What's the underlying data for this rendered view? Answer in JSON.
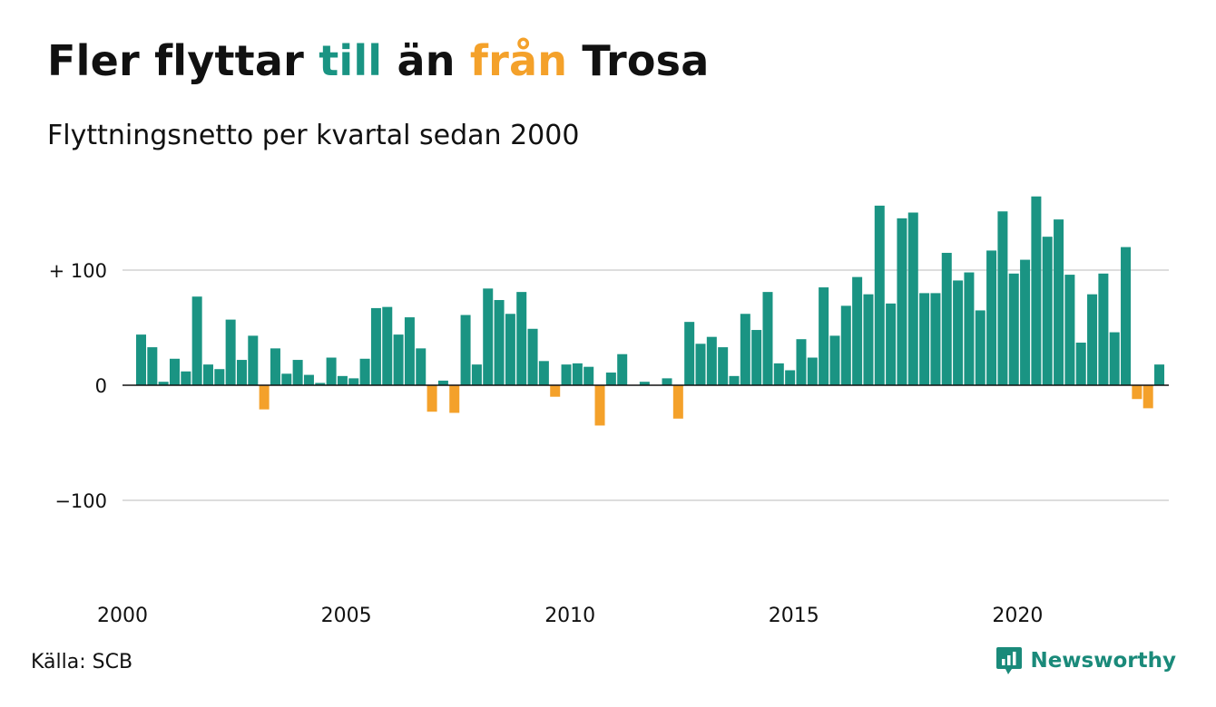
{
  "title": {
    "part1": "Fler flyttar ",
    "part2": "till",
    "part3": " än ",
    "part4": "från",
    "part5": " Trosa"
  },
  "subtitle": "Flyttningsnetto per kvartal sedan 2000",
  "source": "Källa: SCB",
  "brand": {
    "name": "Newsworthy",
    "icon": "newsworthy-logo-icon"
  },
  "colors": {
    "positive": "#1a9483",
    "negative": "#f4a12a",
    "grid": "#dddddd",
    "text": "#111111",
    "brand": "#1a8a7a"
  },
  "chart_data": {
    "type": "bar",
    "title": "Fler flyttar till än från Trosa",
    "subtitle": "Flyttningsnetto per kvartal sedan 2000",
    "x_start": "2000 Q1",
    "x_ticks": [
      "2000",
      "2005",
      "2010",
      "2015",
      "2020"
    ],
    "y_ticks": [
      {
        "value": 100,
        "label": "+ 100"
      },
      {
        "value": 0,
        "label": "0"
      },
      {
        "value": -100,
        "label": "−100"
      }
    ],
    "ylim": [
      -175,
      170
    ],
    "grid": true,
    "values": [
      44,
      33,
      3,
      23,
      12,
      77,
      18,
      14,
      57,
      22,
      43,
      -21,
      32,
      10,
      22,
      9,
      2,
      24,
      8,
      6,
      23,
      67,
      68,
      44,
      59,
      32,
      -23,
      4,
      -24,
      61,
      18,
      84,
      74,
      62,
      81,
      49,
      21,
      -10,
      18,
      19,
      16,
      -35,
      11,
      27,
      0,
      3,
      0,
      6,
      -29,
      55,
      36,
      42,
      33,
      8,
      62,
      48,
      81,
      19,
      13,
      40,
      24,
      85,
      43,
      69,
      94,
      79,
      156,
      71,
      145,
      150,
      80,
      80,
      115,
      91,
      98,
      65,
      117,
      151,
      97,
      109,
      164,
      129,
      144,
      96,
      37,
      79,
      97,
      46,
      120,
      -12,
      -20,
      18
    ]
  }
}
